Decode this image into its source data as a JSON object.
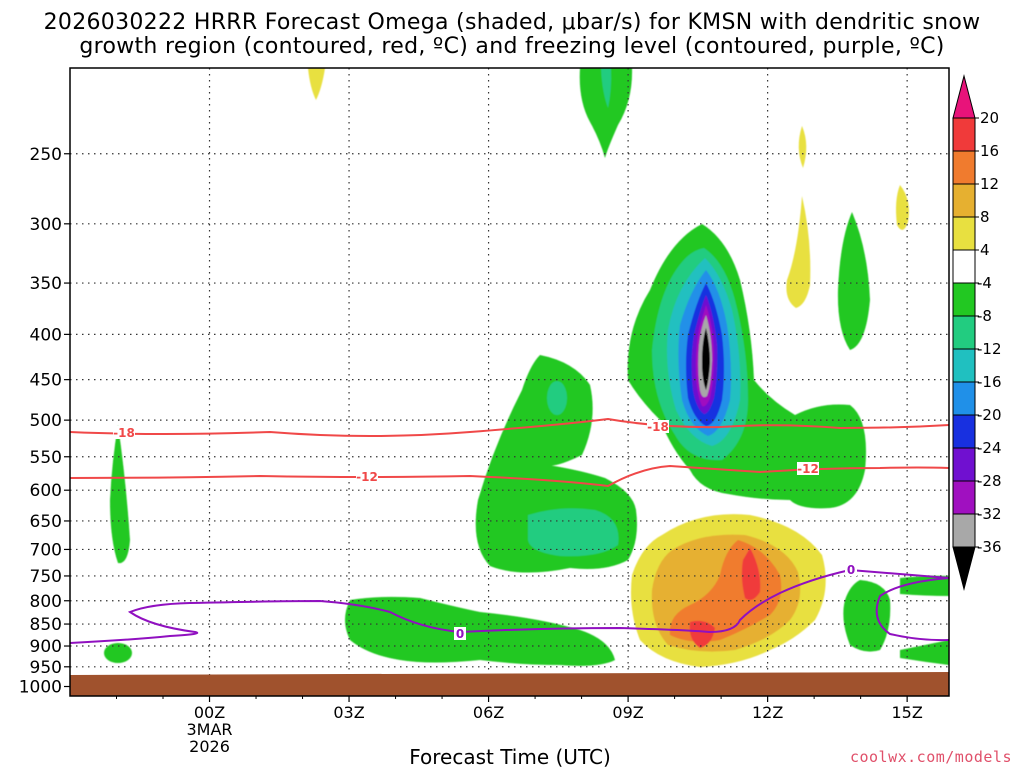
{
  "chart_data": {
    "type": "heatmap",
    "title_line1": "2026030222 HRRR Forecast Omega (shaded, μbar/s) for KMSN with dendritic snow",
    "title_line2": "growth region (contoured, red, ºC) and freezing level (contoured, purple, ºC)",
    "xlabel": "Forecast Time (UTC)",
    "x_range_hours": [
      -3,
      15.9
    ],
    "x_ticks": [
      {
        "hour": 0,
        "label": "00Z",
        "sub1": "3MAR",
        "sub2": "2026"
      },
      {
        "hour": 3,
        "label": "03Z"
      },
      {
        "hour": 6,
        "label": "06Z"
      },
      {
        "hour": 9,
        "label": "09Z"
      },
      {
        "hour": 12,
        "label": "12Z"
      },
      {
        "hour": 15,
        "label": "15Z"
      }
    ],
    "y_range_hPa": [
      200,
      1025
    ],
    "y_axis": "log-pressure (inverted)",
    "y_ticks": [
      250,
      300,
      350,
      400,
      450,
      500,
      550,
      600,
      650,
      700,
      750,
      800,
      850,
      900,
      950,
      1000
    ],
    "colorbar": {
      "levels": [
        20,
        16,
        12,
        8,
        4,
        -4,
        -8,
        -12,
        -16,
        -20,
        -24,
        -28,
        -32,
        -36
      ],
      "colors": [
        "#e8137a",
        "#f03a3a",
        "#f07b2e",
        "#e6b030",
        "#e8e040",
        "#ffffff",
        "#22c822",
        "#22cc80",
        "#20c0c0",
        "#2090e8",
        "#1830e0",
        "#7010d0",
        "#a010c0",
        "#a8a8a8",
        "#000000"
      ]
    },
    "contours": {
      "dgz_red_C": [
        {
          "value": -18,
          "label": "-18"
        },
        {
          "value": -12,
          "label": "-12"
        }
      ],
      "freezing_purple_C": [
        {
          "value": 0,
          "label": "0"
        }
      ]
    },
    "surface_fill": "#a0522d",
    "credit": "coolwx.com/models"
  }
}
